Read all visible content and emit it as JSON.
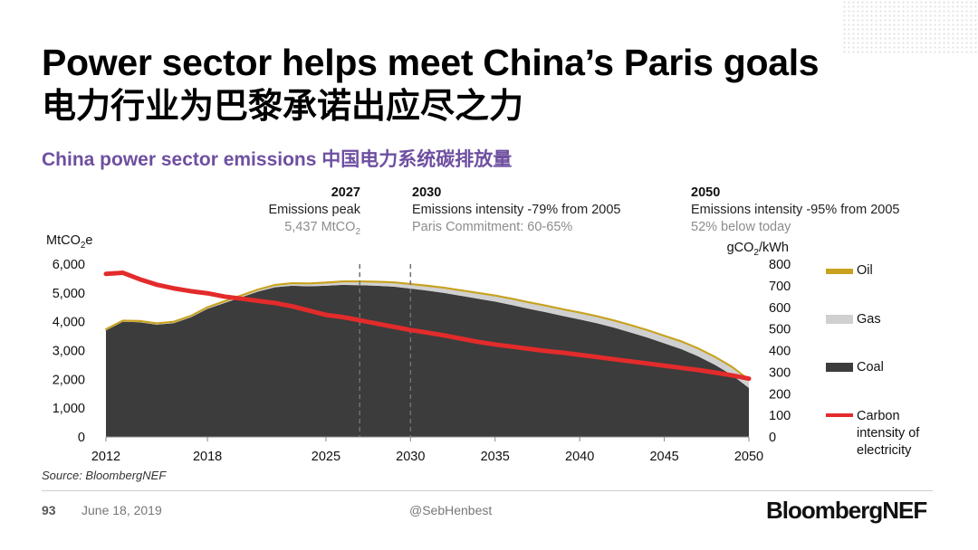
{
  "slide": {
    "title": "Power sector helps meet China’s Paris goals",
    "title_cn": "电力行业为巴黎承诺出应尽之力",
    "subtitle": "China power sector emissions 中国电力系统碳排放量",
    "source": "Source: BloombergNEF",
    "page_number": "93",
    "date": "June 18, 2019",
    "handle": "@SebHenbest",
    "brand": "BloombergNEF"
  },
  "milestones": [
    {
      "year": "2027",
      "line1": "Emissions peak",
      "line2": "5,437 MtCO",
      "line2_sub": "2"
    },
    {
      "year": "2030",
      "line1": "Emissions intensity -79% from 2005",
      "line2": "Paris Commitment: 60-65%"
    },
    {
      "year": "2050",
      "line1": "Emissions intensity -95% from 2005",
      "line2": "52% below today"
    }
  ],
  "chart_data": {
    "type": "area",
    "x": [
      2012,
      2013,
      2014,
      2015,
      2016,
      2017,
      2018,
      2019,
      2020,
      2021,
      2022,
      2023,
      2024,
      2025,
      2026,
      2027,
      2028,
      2029,
      2030,
      2031,
      2032,
      2033,
      2034,
      2035,
      2036,
      2037,
      2038,
      2039,
      2040,
      2041,
      2042,
      2043,
      2044,
      2045,
      2046,
      2047,
      2048,
      2049,
      2050
    ],
    "x_ticks": [
      2012,
      2018,
      2025,
      2030,
      2035,
      2040,
      2045,
      2050
    ],
    "ylabel_left": "MtCO2e",
    "ylabel_right": "gCO2/kWh",
    "ylim_left": [
      0,
      6000
    ],
    "ylim_right": [
      0,
      800
    ],
    "y_ticks_left": [
      "0",
      "1,000",
      "2,000",
      "3,000",
      "4,000",
      "5,000",
      "6,000"
    ],
    "y_ticks_right": [
      "0",
      "100",
      "200",
      "300",
      "400",
      "500",
      "600",
      "700",
      "800"
    ],
    "vlines": [
      2027,
      2030
    ],
    "series": [
      {
        "name": "Coal",
        "axis": "left",
        "color": "#3c3c3c",
        "values": [
          3700,
          4000,
          3980,
          3900,
          3950,
          4150,
          4450,
          4650,
          4850,
          5050,
          5200,
          5250,
          5230,
          5250,
          5280,
          5270,
          5250,
          5220,
          5150,
          5080,
          5000,
          4900,
          4800,
          4700,
          4580,
          4450,
          4330,
          4200,
          4080,
          3950,
          3800,
          3630,
          3450,
          3250,
          3050,
          2800,
          2500,
          2150,
          1700
        ]
      },
      {
        "name": "Gas",
        "axis": "left",
        "color": "#d0d0d0",
        "values": [
          30,
          30,
          35,
          35,
          40,
          40,
          45,
          50,
          55,
          60,
          70,
          80,
          90,
          100,
          110,
          120,
          130,
          140,
          150,
          160,
          170,
          180,
          190,
          200,
          210,
          215,
          220,
          225,
          230,
          235,
          240,
          245,
          250,
          255,
          260,
          265,
          270,
          275,
          280
        ]
      },
      {
        "name": "Oil",
        "axis": "left",
        "color": "#c8a21e",
        "values": [
          20,
          20,
          20,
          20,
          20,
          20,
          20,
          20,
          20,
          20,
          20,
          20,
          20,
          20,
          20,
          20,
          20,
          20,
          20,
          20,
          20,
          20,
          20,
          20,
          20,
          20,
          20,
          20,
          20,
          20,
          20,
          20,
          20,
          20,
          20,
          20,
          20,
          20,
          20
        ]
      },
      {
        "name": "Carbon intensity of electricity",
        "axis": "right",
        "color": "#e32b2b",
        "values": [
          755,
          760,
          730,
          705,
          688,
          675,
          665,
          650,
          640,
          630,
          620,
          605,
          585,
          565,
          555,
          540,
          525,
          510,
          495,
          483,
          470,
          455,
          440,
          428,
          418,
          408,
          398,
          390,
          380,
          370,
          360,
          350,
          340,
          330,
          320,
          310,
          298,
          285,
          270
        ]
      }
    ],
    "legend": [
      {
        "name": "Oil",
        "color": "#c8a21e"
      },
      {
        "name": "Gas",
        "color": "#d0d0d0"
      },
      {
        "name": "Coal",
        "color": "#3c3c3c"
      },
      {
        "name": "Carbon intensity of electricity",
        "lines": [
          "Carbon",
          "intensity of",
          "electricity"
        ],
        "color": "#e32b2b"
      }
    ]
  }
}
